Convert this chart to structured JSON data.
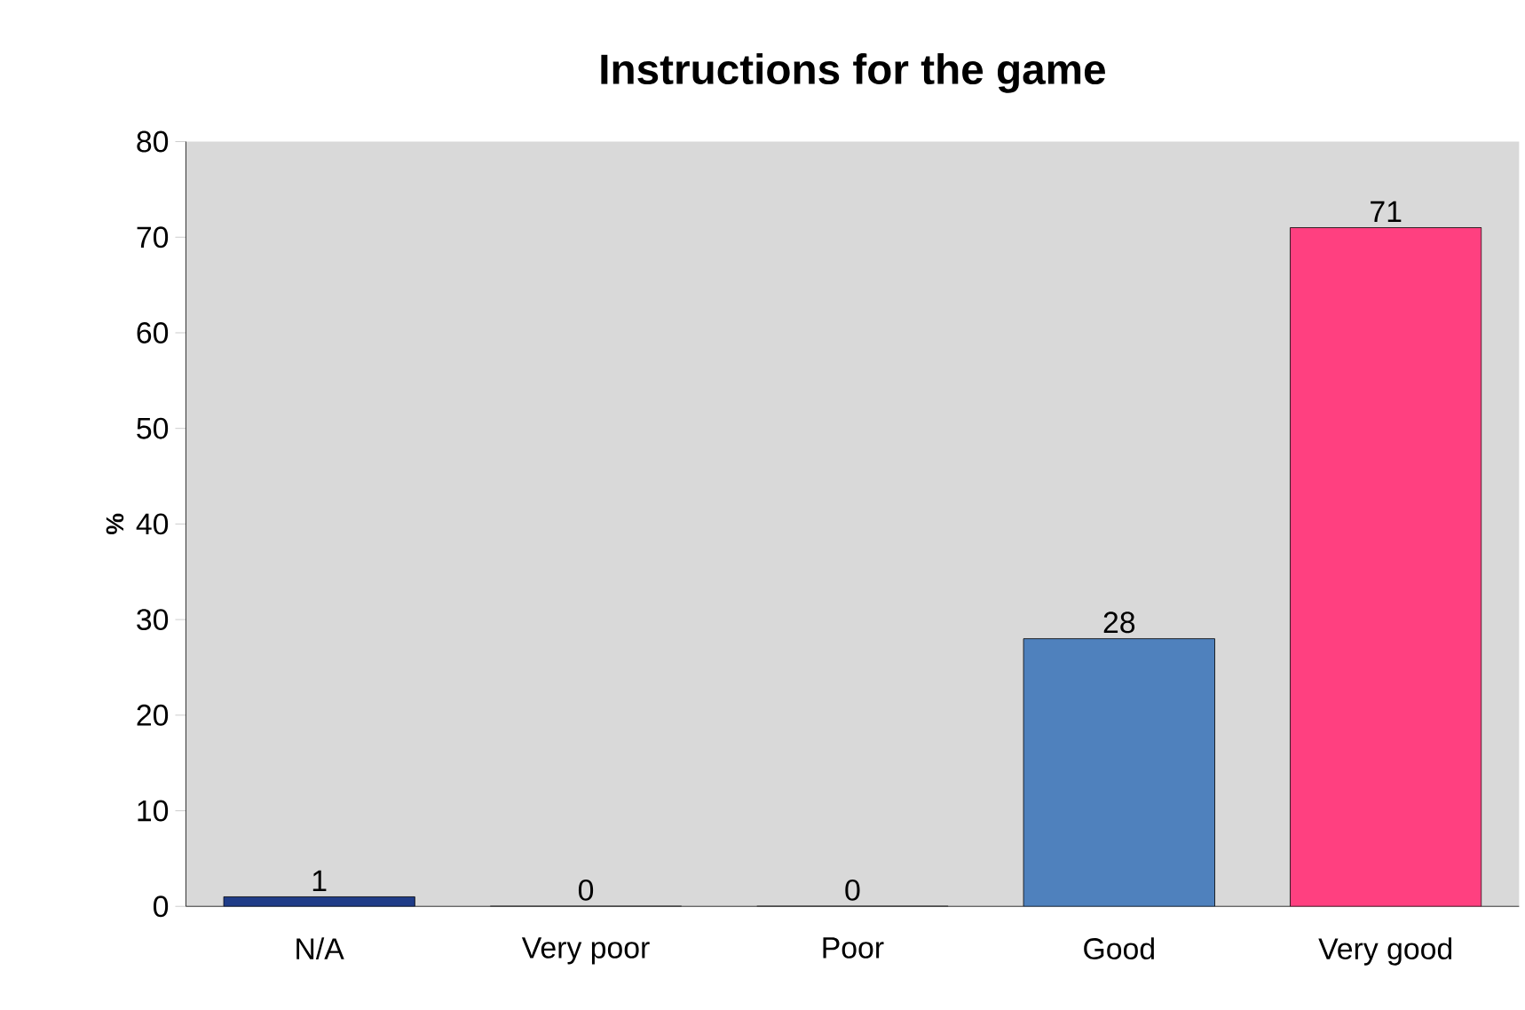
{
  "chart_data": {
    "type": "bar",
    "title": "Instructions for the game",
    "ylabel": "%",
    "categories": [
      "N/A",
      "Very poor",
      "Poor",
      "Good",
      "Very good"
    ],
    "values": [
      1,
      0,
      0,
      28,
      71
    ],
    "colors": [
      "#1f3c88",
      "#1f3c88",
      "#1f3c88",
      "#4f81bd",
      "#ff4080"
    ],
    "ylim": [
      0,
      80
    ],
    "yticks": [
      0,
      10,
      20,
      30,
      40,
      50,
      60,
      70,
      80
    ],
    "data_labels": true,
    "grid": false
  }
}
